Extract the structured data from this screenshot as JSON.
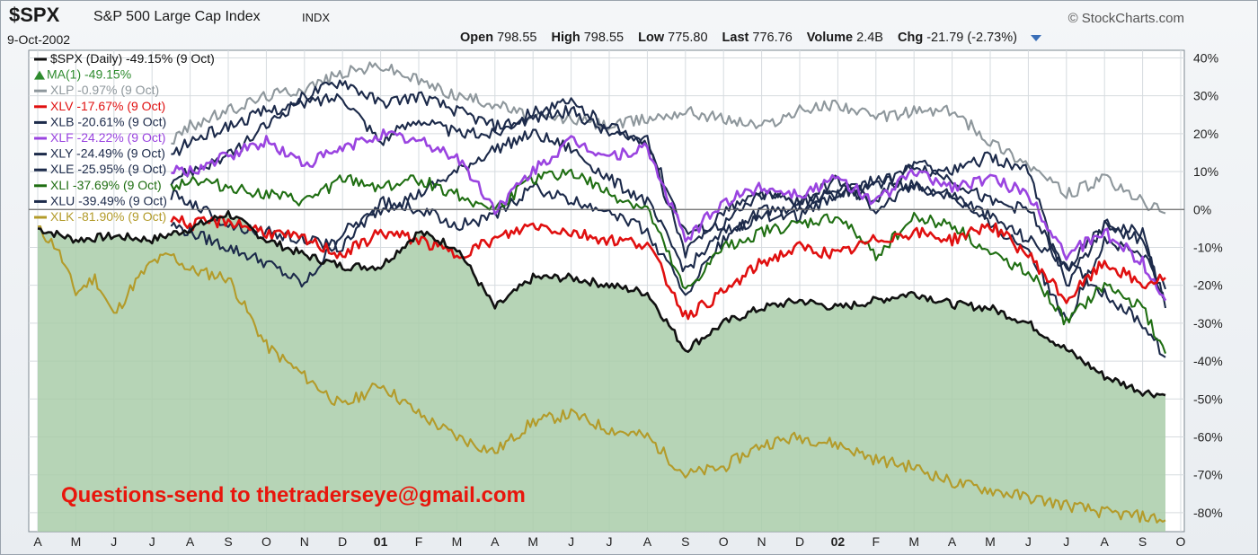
{
  "header": {
    "symbol": "$SPX",
    "name": "S&P 500 Large Cap Index",
    "exchange": "INDX",
    "brand": "StockCharts.com",
    "date": "9-Oct-2002",
    "open_label": "Open",
    "open": "798.55",
    "high_label": "High",
    "high": "798.55",
    "low_label": "Low",
    "low": "775.80",
    "last_label": "Last",
    "last": "776.76",
    "volume_label": "Volume",
    "volume": "2.4B",
    "chg_label": "Chg",
    "chg": "-21.79 (-2.73%)"
  },
  "watermark": "Questions-send to thetraderseye@gmail.com",
  "colors": {
    "SPX": "#111111",
    "MA": "#2e8b2e",
    "XLP": "#8e979c",
    "XLV": "#e01010",
    "XLB": "#1c2a4a",
    "XLF": "#9a44e0",
    "XLY": "#1c2a4a",
    "XLE": "#1c2a4a",
    "XLI": "#1f6e12",
    "XLU": "#1c2a4a",
    "XLK": "#b39b2a",
    "area": "#a9cca9"
  },
  "chart_data": {
    "type": "line",
    "ylim": [
      -85,
      42
    ],
    "yticks": [
      "40%",
      "30%",
      "20%",
      "10%",
      "0%",
      "-10%",
      "-20%",
      "-30%",
      "-40%",
      "-50%",
      "-60%",
      "-70%",
      "-80%"
    ],
    "yvalues": [
      40,
      30,
      20,
      10,
      0,
      -10,
      -20,
      -30,
      -40,
      -50,
      -60,
      -70,
      -80
    ],
    "xticks": [
      "A",
      "M",
      "J",
      "J",
      "A",
      "S",
      "O",
      "N",
      "D",
      "01",
      "F",
      "M",
      "A",
      "M",
      "J",
      "J",
      "A",
      "S",
      "O",
      "N",
      "D",
      "02",
      "F",
      "M",
      "A",
      "M",
      "J",
      "J",
      "A",
      "S",
      "O"
    ],
    "legend": [
      {
        "key": "SPX",
        "label": "$SPX (Daily) -49.15% (9 Oct)"
      },
      {
        "key": "MA",
        "label": "MA(1) -49.15%"
      },
      {
        "key": "XLP",
        "label": "XLP -0.97% (9 Oct)"
      },
      {
        "key": "XLV",
        "label": "XLV -17.67% (9 Oct)"
      },
      {
        "key": "XLB",
        "label": "XLB -20.61% (9 Oct)"
      },
      {
        "key": "XLF",
        "label": "XLF -24.22% (9 Oct)"
      },
      {
        "key": "XLY",
        "label": "XLY -24.49% (9 Oct)"
      },
      {
        "key": "XLE",
        "label": "XLE -25.95% (9 Oct)"
      },
      {
        "key": "XLI",
        "label": "XLI -37.69% (9 Oct)"
      },
      {
        "key": "XLU",
        "label": "XLU -39.49% (9 Oct)"
      },
      {
        "key": "XLK",
        "label": "XLK -81.90% (9 Oct)"
      }
    ],
    "series": [
      {
        "key": "SPX",
        "x": [
          0,
          1,
          2,
          3,
          4,
          5,
          6,
          7,
          8,
          9,
          10,
          11,
          12,
          13,
          14,
          15,
          16,
          17,
          18,
          19,
          20,
          21,
          22,
          23,
          24,
          25,
          26,
          27,
          28,
          29,
          29.6
        ],
        "values": [
          -5,
          -8,
          -7,
          -8,
          -5,
          -1,
          -8,
          -12,
          -15,
          -15,
          -6,
          -10,
          -26,
          -18,
          -18,
          -20,
          -22,
          -37,
          -30,
          -26,
          -24,
          -26,
          -24,
          -22,
          -25,
          -26,
          -30,
          -37,
          -44,
          -48,
          -49
        ]
      },
      {
        "key": "XLP",
        "x": [
          3.5,
          4,
          5,
          6,
          7,
          8,
          9,
          10,
          11,
          12,
          13,
          14,
          15,
          16,
          17,
          18,
          19,
          20,
          21,
          22,
          23,
          24,
          25,
          26,
          27,
          28,
          29,
          29.6
        ],
        "values": [
          18,
          22,
          26,
          30,
          32,
          36,
          38,
          34,
          30,
          28,
          24,
          24,
          22,
          24,
          26,
          24,
          22,
          26,
          28,
          24,
          26,
          26,
          18,
          12,
          4,
          8,
          2,
          -1
        ]
      },
      {
        "key": "XLV",
        "x": [
          3.5,
          4,
          5,
          6,
          7,
          8,
          9,
          10,
          11,
          12,
          13,
          14,
          15,
          16,
          17,
          18,
          19,
          20,
          21,
          22,
          23,
          24,
          25,
          26,
          27,
          28,
          29,
          29.6
        ],
        "values": [
          -2,
          -4,
          -3,
          -6,
          -8,
          -12,
          -6,
          -8,
          -12,
          -8,
          -4,
          -6,
          -8,
          -9,
          -28,
          -22,
          -14,
          -10,
          -12,
          -8,
          -6,
          -8,
          -4,
          -12,
          -24,
          -14,
          -20,
          -18
        ]
      },
      {
        "key": "XLB",
        "x": [
          3.5,
          4,
          5,
          6,
          7,
          8,
          9,
          10,
          11,
          12,
          13,
          14,
          15,
          16,
          17,
          18,
          19,
          20,
          21,
          22,
          23,
          24,
          25,
          26,
          27,
          28,
          29,
          29.6
        ],
        "values": [
          4,
          2,
          -4,
          -6,
          -8,
          -10,
          2,
          0,
          -4,
          -2,
          6,
          2,
          0,
          -6,
          -22,
          -8,
          0,
          -2,
          4,
          8,
          6,
          4,
          -4,
          -10,
          -30,
          -8,
          -12,
          -21
        ]
      },
      {
        "key": "XLF",
        "x": [
          3.5,
          4,
          5,
          6,
          7,
          8,
          9,
          10,
          11,
          12,
          13,
          14,
          15,
          16,
          17,
          18,
          19,
          20,
          21,
          22,
          23,
          24,
          25,
          26,
          27,
          28,
          29,
          29.6
        ],
        "values": [
          10,
          10,
          14,
          18,
          12,
          16,
          20,
          18,
          14,
          0,
          10,
          18,
          14,
          16,
          -8,
          2,
          6,
          4,
          8,
          2,
          10,
          6,
          8,
          4,
          -12,
          -6,
          -14,
          -24
        ]
      },
      {
        "key": "XLY",
        "x": [
          3.5,
          4,
          5,
          6,
          7,
          8,
          9,
          10,
          11,
          12,
          13,
          14,
          15,
          16,
          17,
          18,
          19,
          20,
          21,
          22,
          23,
          24,
          25,
          26,
          27,
          28,
          29,
          29.6
        ],
        "values": [
          14,
          18,
          22,
          26,
          28,
          30,
          18,
          24,
          20,
          20,
          26,
          28,
          22,
          18,
          -12,
          0,
          4,
          2,
          4,
          6,
          12,
          10,
          14,
          10,
          -20,
          -4,
          -8,
          -24
        ]
      },
      {
        "key": "XLE",
        "x": [
          3.5,
          4,
          5,
          6,
          7,
          8,
          9,
          10,
          11,
          12,
          13,
          14,
          15,
          16,
          17,
          18,
          19,
          20,
          21,
          22,
          23,
          24,
          25,
          26,
          27,
          28,
          29,
          29.6
        ],
        "values": [
          -4,
          -6,
          -10,
          -14,
          -20,
          -6,
          0,
          4,
          10,
          16,
          20,
          16,
          8,
          2,
          -16,
          -6,
          -2,
          0,
          6,
          2,
          12,
          8,
          2,
          0,
          -16,
          -4,
          -6,
          -26
        ]
      },
      {
        "key": "XLI",
        "x": [
          3.5,
          4,
          5,
          6,
          7,
          8,
          9,
          10,
          11,
          12,
          13,
          14,
          15,
          16,
          17,
          18,
          19,
          20,
          21,
          22,
          23,
          24,
          25,
          26,
          27,
          28,
          29,
          29.6
        ],
        "values": [
          6,
          8,
          6,
          4,
          2,
          8,
          6,
          8,
          4,
          0,
          8,
          10,
          4,
          0,
          -22,
          -10,
          -6,
          -4,
          -2,
          -12,
          -2,
          -4,
          -12,
          -16,
          -30,
          -20,
          -26,
          -38
        ]
      },
      {
        "key": "XLU",
        "x": [
          3.5,
          4,
          5,
          6,
          7,
          8,
          9,
          10,
          11,
          12,
          13,
          14,
          15,
          16,
          17,
          18,
          19,
          20,
          21,
          22,
          23,
          24,
          25,
          26,
          27,
          28,
          29,
          29.6
        ],
        "values": [
          8,
          10,
          14,
          22,
          30,
          34,
          28,
          30,
          26,
          22,
          24,
          26,
          20,
          18,
          -6,
          -4,
          4,
          2,
          8,
          0,
          6,
          4,
          -2,
          -8,
          -14,
          -22,
          -30,
          -39
        ]
      },
      {
        "key": "XLK",
        "x": [
          0,
          0.5,
          1,
          1.5,
          2,
          2.5,
          3,
          3.5,
          4,
          5,
          6,
          7,
          8,
          9,
          10,
          11,
          12,
          13,
          14,
          15,
          16,
          17,
          18,
          19,
          20,
          21,
          22,
          23,
          24,
          25,
          26,
          27,
          28,
          29,
          29.6
        ],
        "values": [
          -5,
          -10,
          -22,
          -18,
          -28,
          -20,
          -14,
          -12,
          -16,
          -18,
          -36,
          -44,
          -52,
          -46,
          -54,
          -60,
          -64,
          -56,
          -54,
          -58,
          -60,
          -70,
          -68,
          -62,
          -60,
          -62,
          -66,
          -68,
          -72,
          -74,
          -76,
          -78,
          -80,
          -81,
          -82
        ]
      }
    ]
  }
}
